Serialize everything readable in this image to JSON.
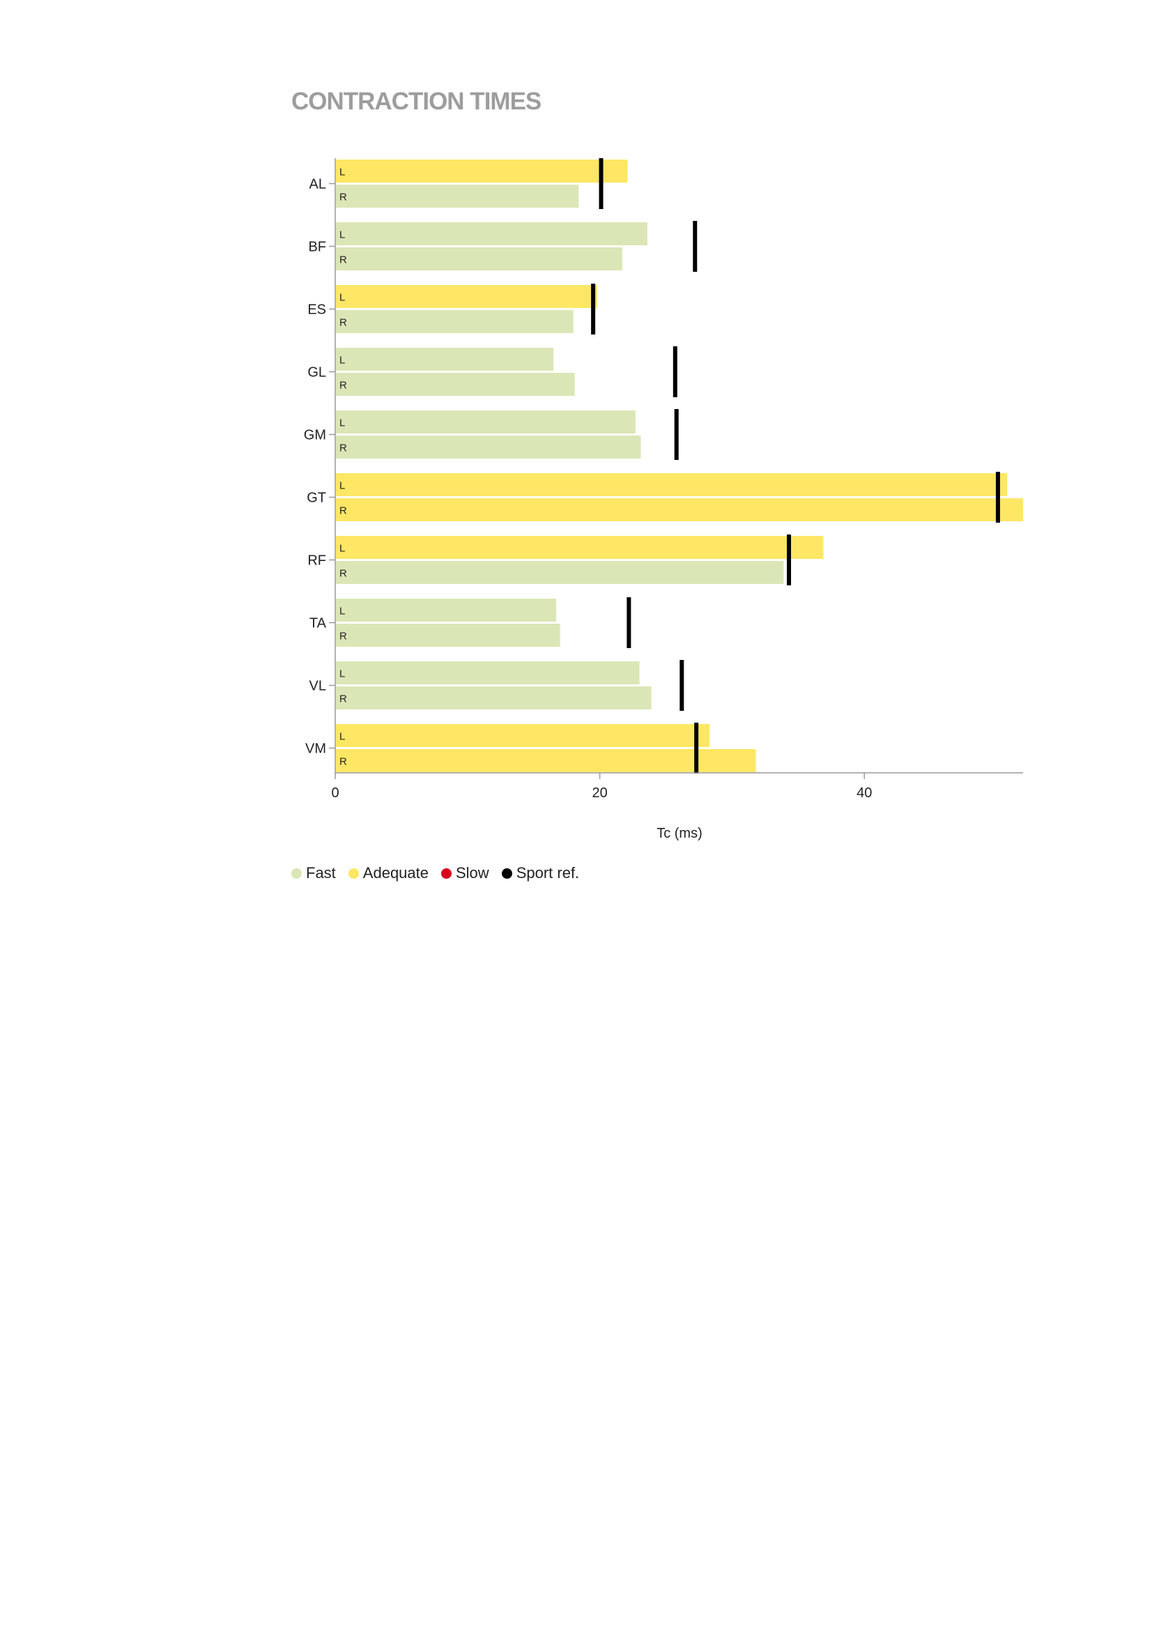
{
  "page": {
    "title": "CONTRACTION TIMES"
  },
  "colors": {
    "fast": "#dbe6b6",
    "adequate": "#fde764",
    "slow": "#d9001b",
    "sport_ref": "#000000",
    "axis": "#999999",
    "title": "#9d9d9d"
  },
  "legend": [
    {
      "label": "Fast",
      "color": "#dbe6b6"
    },
    {
      "label": "Adequate",
      "color": "#fde764"
    },
    {
      "label": "Slow",
      "color": "#d9001b"
    },
    {
      "label": "Sport ref.",
      "color": "#000000"
    }
  ],
  "chart_data": {
    "type": "bar",
    "orientation": "horizontal",
    "title": "CONTRACTION TIMES",
    "xlabel": "Tc (ms)",
    "ylabel": "",
    "xlim": [
      0,
      52
    ],
    "xticks": [
      0,
      20,
      40
    ],
    "side_labels": [
      "L",
      "R"
    ],
    "categories": [
      "AL",
      "BF",
      "ES",
      "GL",
      "GM",
      "GT",
      "RF",
      "TA",
      "VL",
      "VM"
    ],
    "series": [
      {
        "side": "L",
        "values": [
          22.1,
          23.6,
          19.8,
          16.5,
          22.7,
          50.8,
          36.9,
          16.7,
          23.0,
          28.3
        ],
        "status": [
          "adequate",
          "fast",
          "adequate",
          "fast",
          "fast",
          "adequate",
          "adequate",
          "fast",
          "fast",
          "adequate"
        ]
      },
      {
        "side": "R",
        "values": [
          18.4,
          21.7,
          18.0,
          18.1,
          23.1,
          52.0,
          33.9,
          17.0,
          23.9,
          31.8
        ],
        "status": [
          "fast",
          "fast",
          "fast",
          "fast",
          "fast",
          "adequate",
          "fast",
          "fast",
          "fast",
          "adequate"
        ]
      }
    ],
    "sport_ref": [
      20.1,
      27.2,
      19.5,
      25.7,
      25.8,
      50.1,
      34.3,
      22.2,
      26.2,
      27.3
    ],
    "legend_position": "bottom-left",
    "grid": false
  }
}
